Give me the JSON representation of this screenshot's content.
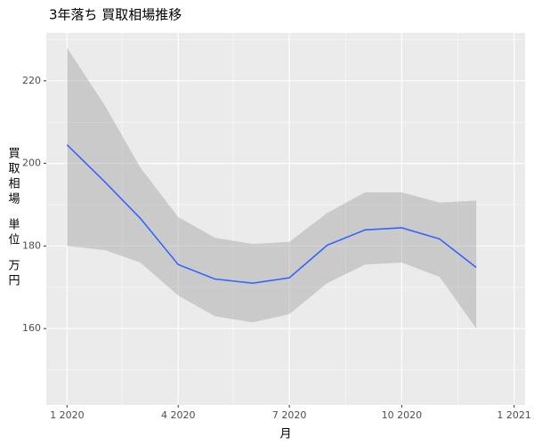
{
  "chart_data": {
    "type": "line",
    "title": "3年落ち 買取相場推移",
    "xlabel": "月",
    "ylabel": [
      "買取相場",
      "単位",
      "万円"
    ],
    "x": [
      "2020-01",
      "2020-02",
      "2020-03",
      "2020-04",
      "2020-05",
      "2020-06",
      "2020-07",
      "2020-08",
      "2020-09",
      "2020-10",
      "2020-11",
      "2020-12"
    ],
    "series": [
      {
        "color": "#3366ff",
        "band_color": "#999999",
        "values": [
          204.5,
          195.5,
          186.7,
          175.5,
          172,
          171,
          172.3,
          180.2,
          183.9,
          184.4,
          181.7,
          174.8
        ],
        "upper": [
          228,
          214,
          199,
          187,
          182,
          180.5,
          181,
          188,
          193,
          193,
          190.5,
          191
        ],
        "lower": [
          180,
          179,
          176,
          168,
          163,
          161.5,
          163.5,
          171,
          175.5,
          176,
          172.5,
          160
        ]
      }
    ],
    "xlim": [
      "2019-12-15",
      "2021-01-10"
    ],
    "xticks": [
      {
        "value": "2020-01",
        "label": "1 2020"
      },
      {
        "value": "2020-04",
        "label": "4 2020"
      },
      {
        "value": "2020-07",
        "label": "7 2020"
      },
      {
        "value": "2020-10",
        "label": "10 2020"
      },
      {
        "value": "2021-01",
        "label": "1 2021"
      }
    ],
    "minor_xticks": [
      "2020-02-15",
      "2020-05-16",
      "2020-08-16",
      "2020-11-16"
    ],
    "ylim": [
      141.5,
      231.6
    ],
    "yticks": [
      160,
      180,
      200,
      220
    ],
    "minor_yticks": [
      150,
      170,
      190,
      210,
      230
    ],
    "grid": true
  }
}
